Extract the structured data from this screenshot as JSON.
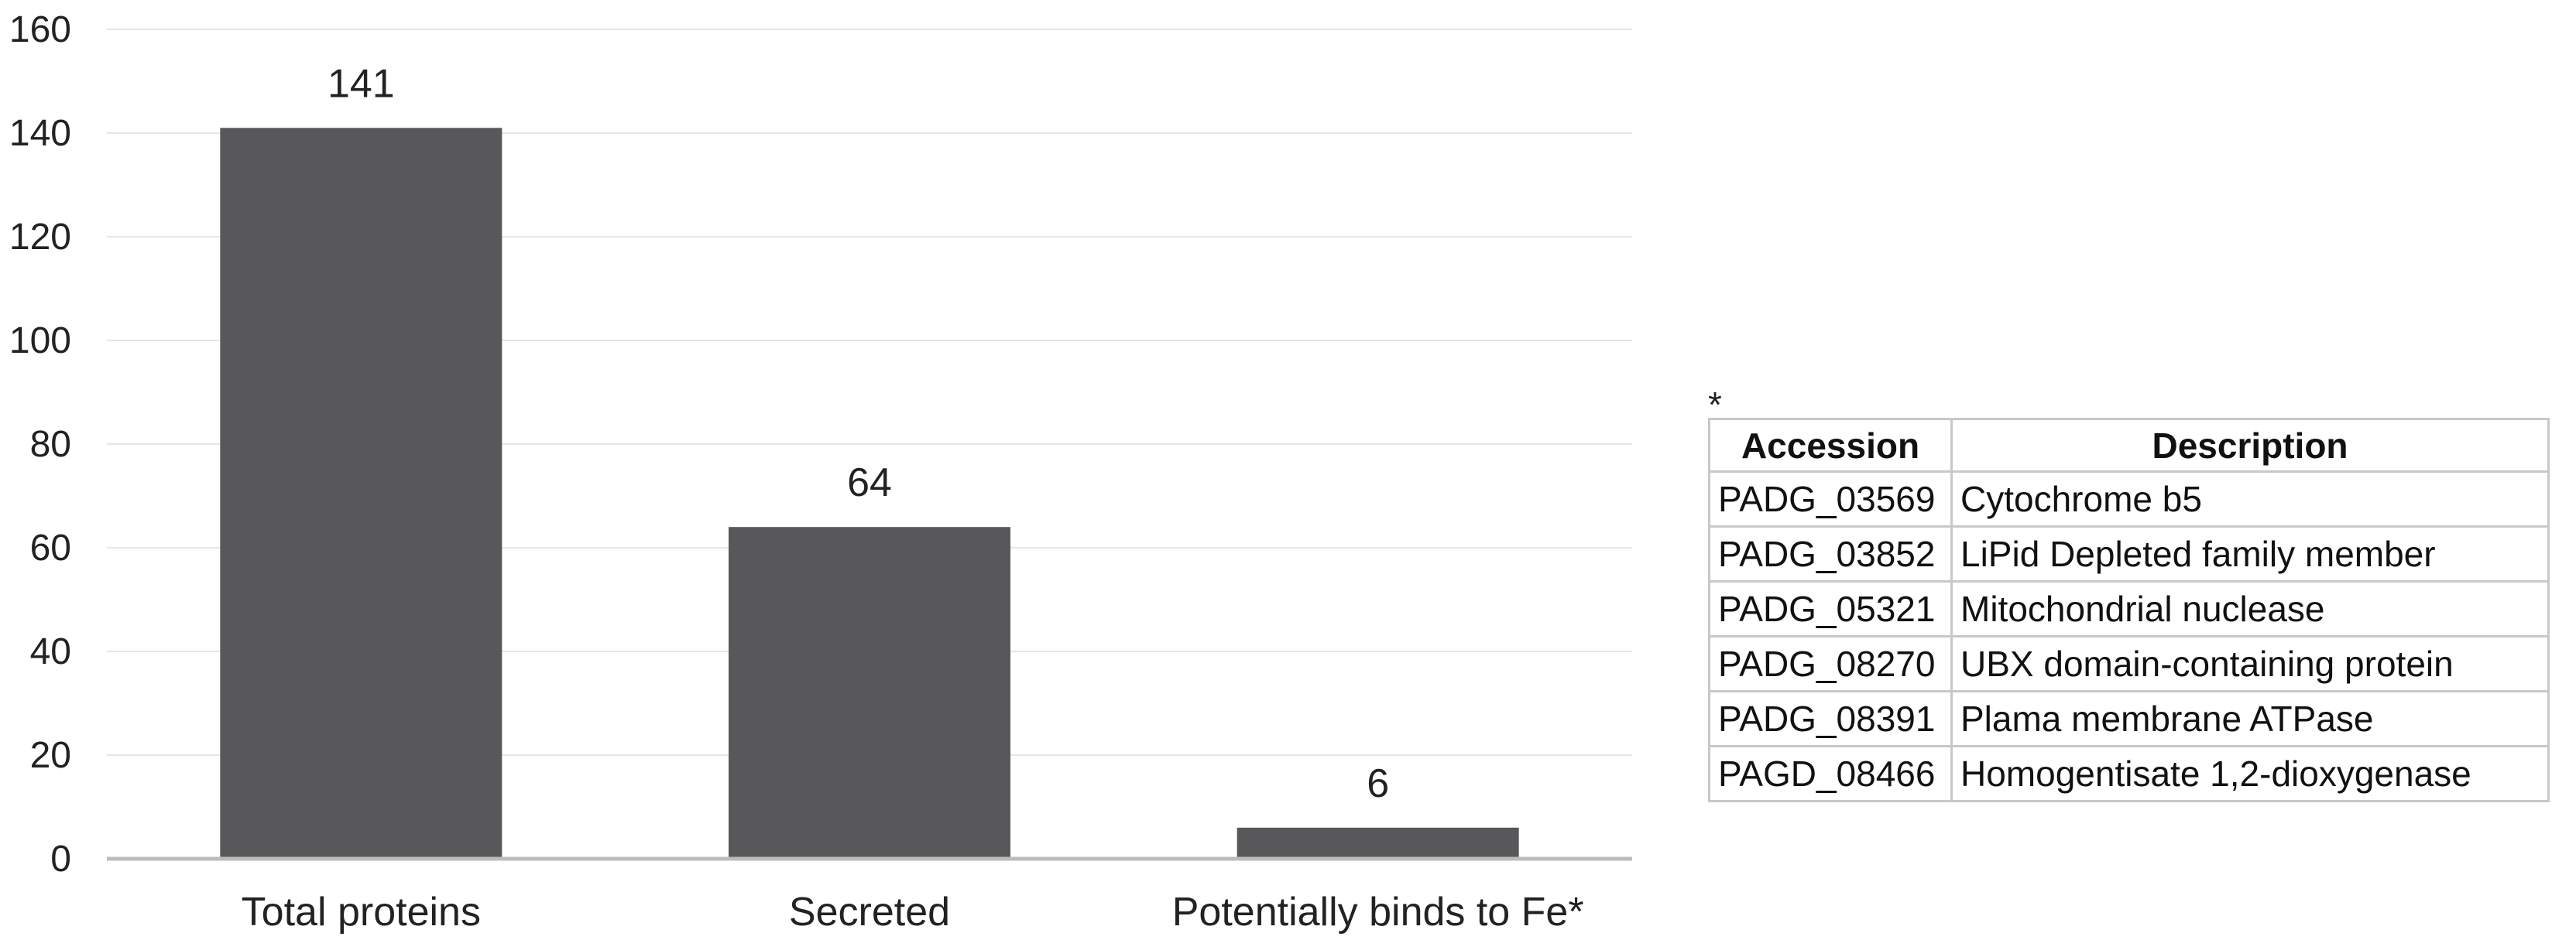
{
  "chart_data": {
    "type": "bar",
    "categories": [
      "Total proteins",
      "Secreted",
      "Potentially binds to Fe*"
    ],
    "values": [
      141,
      64,
      6
    ],
    "data_labels": [
      "141",
      "64",
      "6"
    ],
    "ylim": [
      0,
      160
    ],
    "yticks": [
      0,
      20,
      40,
      60,
      80,
      100,
      120,
      140,
      160
    ],
    "ytick_labels": [
      "0",
      "20",
      "40",
      "60",
      "80",
      "100",
      "120",
      "140",
      "160"
    ],
    "title": "",
    "xlabel": "",
    "ylabel": "",
    "grid": true,
    "legend": "none",
    "bar_color": "#58585a",
    "grid_color": "#e6e6e6",
    "axis_color": "#bcbcbc"
  },
  "footnote": {
    "marker": "*",
    "table": {
      "headers": [
        "Accession",
        "Description"
      ],
      "rows": [
        [
          "PADG_03569",
          "Cytochrome b5"
        ],
        [
          "PADG_03852",
          "LiPid Depleted family member"
        ],
        [
          "PADG_05321",
          "Mitochondrial  nuclease"
        ],
        [
          "PADG_08270",
          "UBX domain-containing protein"
        ],
        [
          "PADG_08391",
          "Plama membrane ATPase"
        ],
        [
          "PAGD_08466",
          "Homogentisate 1,2-dioxygenase"
        ]
      ]
    }
  }
}
